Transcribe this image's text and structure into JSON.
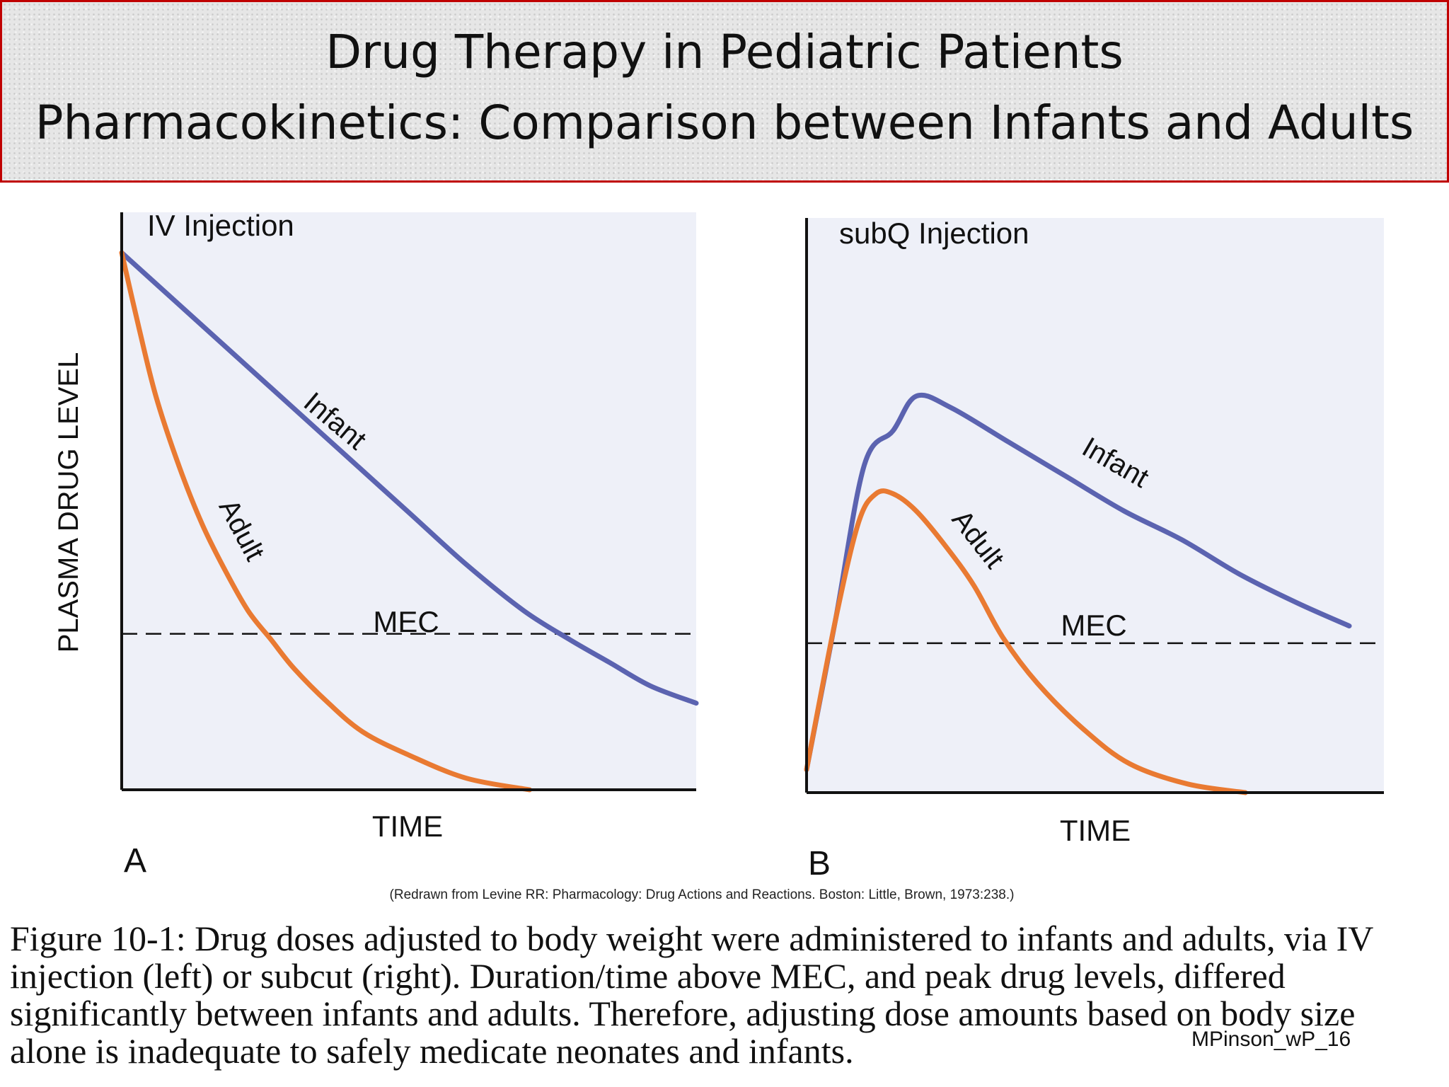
{
  "slide": {
    "title_line1": "Drug Therapy in Pediatric Patients",
    "title_line2": "Pharmacokinetics: Comparison between Infants and Adults",
    "source_note": "(Redrawn from Levine RR: Pharmacology: Drug Actions and Reactions. Boston: Little, Brown, 1973:238.)",
    "caption": "Figure 10-1: Drug doses adjusted to body weight were administered to infants and adults, via IV injection (left) or subcut (right). Duration/time above MEC, and peak drug levels, differed significantly between infants and adults. Therefore, adjusting dose amounts based on body size alone is inadequate to safely medicate neonates and infants.",
    "footer_label": "MPinson_wP_16",
    "colors": {
      "banner_border": "#c00000",
      "infant": "#5b63b0",
      "adult": "#e97a32",
      "plot_bg": "#eef0f8"
    }
  },
  "chart_data": [
    {
      "type": "line",
      "panel_label": "A",
      "title": "IV Injection",
      "xlabel": "TIME",
      "ylabel": "PLASMA DRUG LEVEL",
      "xlim": [
        0,
        1
      ],
      "ylim": [
        0,
        1
      ],
      "mec": 0.27,
      "mec_label": "MEC",
      "series": [
        {
          "name": "Infant",
          "color": "#5b63b0",
          "x": [
            0,
            0.1,
            0.2,
            0.3,
            0.4,
            0.5,
            0.6,
            0.7,
            0.78,
            0.85,
            0.92,
            1.0
          ],
          "y": [
            0.93,
            0.84,
            0.75,
            0.66,
            0.57,
            0.48,
            0.39,
            0.31,
            0.26,
            0.22,
            0.18,
            0.15
          ]
        },
        {
          "name": "Adult",
          "color": "#e97a32",
          "x": [
            0,
            0.03,
            0.06,
            0.1,
            0.14,
            0.18,
            0.22,
            0.26,
            0.3,
            0.36,
            0.42,
            0.5,
            0.6,
            0.71
          ],
          "y": [
            0.93,
            0.8,
            0.68,
            0.56,
            0.46,
            0.38,
            0.31,
            0.26,
            0.21,
            0.15,
            0.1,
            0.06,
            0.02,
            0.0
          ]
        }
      ]
    },
    {
      "type": "line",
      "panel_label": "B",
      "title": "subQ Injection",
      "xlabel": "TIME",
      "ylabel": "",
      "xlim": [
        0,
        1
      ],
      "ylim": [
        0,
        1
      ],
      "mec": 0.26,
      "mec_label": "MEC",
      "series": [
        {
          "name": "Infant",
          "color": "#5b63b0",
          "x": [
            0,
            0.05,
            0.1,
            0.15,
            0.19,
            0.25,
            0.35,
            0.45,
            0.55,
            0.65,
            0.75,
            0.85,
            0.94
          ],
          "y": [
            0.04,
            0.3,
            0.57,
            0.63,
            0.69,
            0.67,
            0.61,
            0.55,
            0.49,
            0.44,
            0.38,
            0.33,
            0.29
          ]
        },
        {
          "name": "Adult",
          "color": "#e97a32",
          "x": [
            0,
            0.05,
            0.09,
            0.12,
            0.15,
            0.19,
            0.24,
            0.29,
            0.34,
            0.4,
            0.48,
            0.56,
            0.66,
            0.76
          ],
          "y": [
            0.04,
            0.3,
            0.47,
            0.52,
            0.52,
            0.49,
            0.43,
            0.36,
            0.27,
            0.19,
            0.11,
            0.05,
            0.015,
            0.0
          ]
        }
      ]
    }
  ]
}
